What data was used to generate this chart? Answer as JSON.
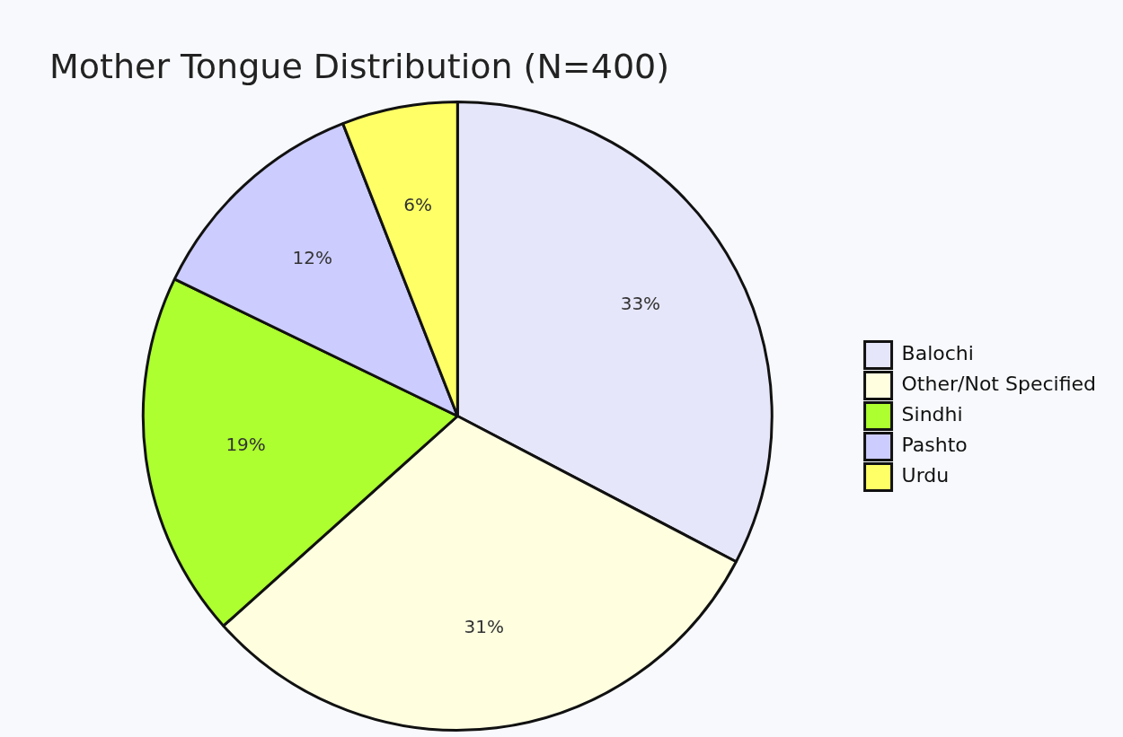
{
  "chart_data": {
    "type": "pie",
    "title": "Mother Tongue Distribution (N=400)",
    "categories": [
      "Balochi",
      "Other/Not Specified",
      "Sindhi",
      "Pashto",
      "Urdu"
    ],
    "values": [
      33,
      31,
      19,
      12,
      6
    ],
    "value_labels": [
      "33%",
      "31%",
      "19%",
      "12%",
      "6%"
    ],
    "colors": [
      "#e6e6fa",
      "#ffffe0",
      "#adff2f",
      "#ccccff",
      "#ffff66"
    ],
    "legend": "right"
  }
}
